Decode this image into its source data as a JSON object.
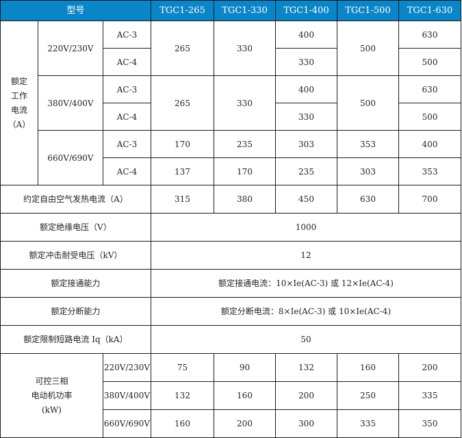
{
  "header": {
    "model_label": "型号",
    "models": [
      "TGC1-265",
      "TGC1-330",
      "TGC1-400",
      "TGC1-500",
      "TGC1-630"
    ]
  },
  "rated_current": {
    "label": "额定\n工作\n电流\n（A）",
    "groups": [
      {
        "voltage": "220V/230V",
        "ac3_label": "AC-3",
        "ac4_label": "AC-4",
        "merged": [
          "265",
          "330"
        ],
        "ac3_400": "400",
        "ac4_400": "330",
        "merged_500": "500",
        "ac3_630": "630",
        "ac4_630": "500"
      },
      {
        "voltage": "380V/400V",
        "ac3_label": "AC-3",
        "ac4_label": "AC-4",
        "merged": [
          "265",
          "330"
        ],
        "ac3_400": "400",
        "ac4_400": "330",
        "merged_500": "500",
        "ac3_630": "630",
        "ac4_630": "500"
      },
      {
        "voltage": "660V/690V",
        "ac3_label": "AC-3",
        "ac4_label": "AC-4",
        "ac3": [
          "170",
          "235",
          "303",
          "353",
          "400"
        ],
        "ac4": [
          "137",
          "170",
          "235",
          "303",
          "353"
        ]
      }
    ]
  },
  "thermal": {
    "label": "约定自由空气发热电流（A）",
    "values": [
      "315",
      "380",
      "450",
      "630",
      "700"
    ]
  },
  "insulation": {
    "label": "额定绝缘电压（V）",
    "value": "1000"
  },
  "impulse": {
    "label": "额定冲击耐受电压（kV）",
    "value": "12"
  },
  "making": {
    "label": "额定接通能力",
    "value": "额定接通电流：10×Ie(AC-3) 或 12×Ie(AC-4)"
  },
  "breaking": {
    "label": "额定分断能力",
    "value": "额定分断电流：8×Ie(AC-3) 或 10×Ie(AC-4)"
  },
  "short_circuit": {
    "label": "额定限制短路电流 Iq（kA）",
    "value": "50"
  },
  "motor_power": {
    "label": "可控三相\n电动机功率\n(kW)",
    "rows": [
      {
        "voltage": "220V/230V",
        "values": [
          "75",
          "90",
          "132",
          "160",
          "200"
        ]
      },
      {
        "voltage": "380V/400V",
        "values": [
          "132",
          "160",
          "200",
          "250",
          "335"
        ]
      },
      {
        "voltage": "660V/690V",
        "values": [
          "160",
          "200",
          "300",
          "335",
          "350"
        ]
      }
    ]
  }
}
